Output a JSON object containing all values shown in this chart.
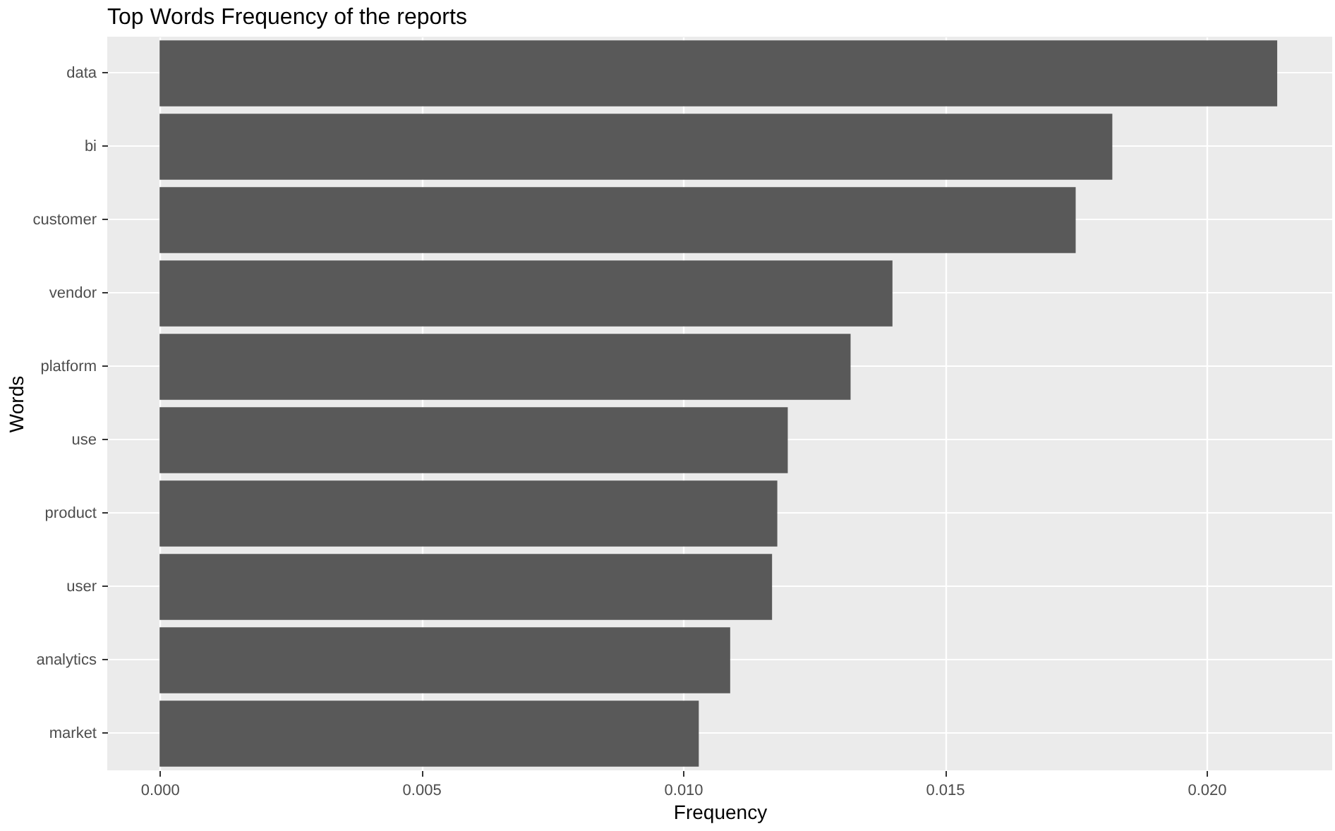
{
  "chart_data": {
    "type": "bar",
    "orientation": "horizontal",
    "title": "Top Words Frequency of the reports",
    "xlabel": "Frequency",
    "ylabel": "Words",
    "categories": [
      "data",
      "bi",
      "customer",
      "vendor",
      "platform",
      "use",
      "product",
      "user",
      "analytics",
      "market"
    ],
    "values": [
      0.02135,
      0.0182,
      0.0175,
      0.014,
      0.0132,
      0.012,
      0.0118,
      0.0117,
      0.0109,
      0.0103
    ],
    "color": "#595959",
    "xlim": [
      -0.001,
      0.0224
    ],
    "xticks": [
      {
        "value": 0,
        "label": "0.000"
      },
      0.005,
      {
        "value": 0.01,
        "label": "0.010"
      },
      0.015,
      {
        "value": 0.02,
        "label": "0.020"
      }
    ],
    "grid": true
  }
}
